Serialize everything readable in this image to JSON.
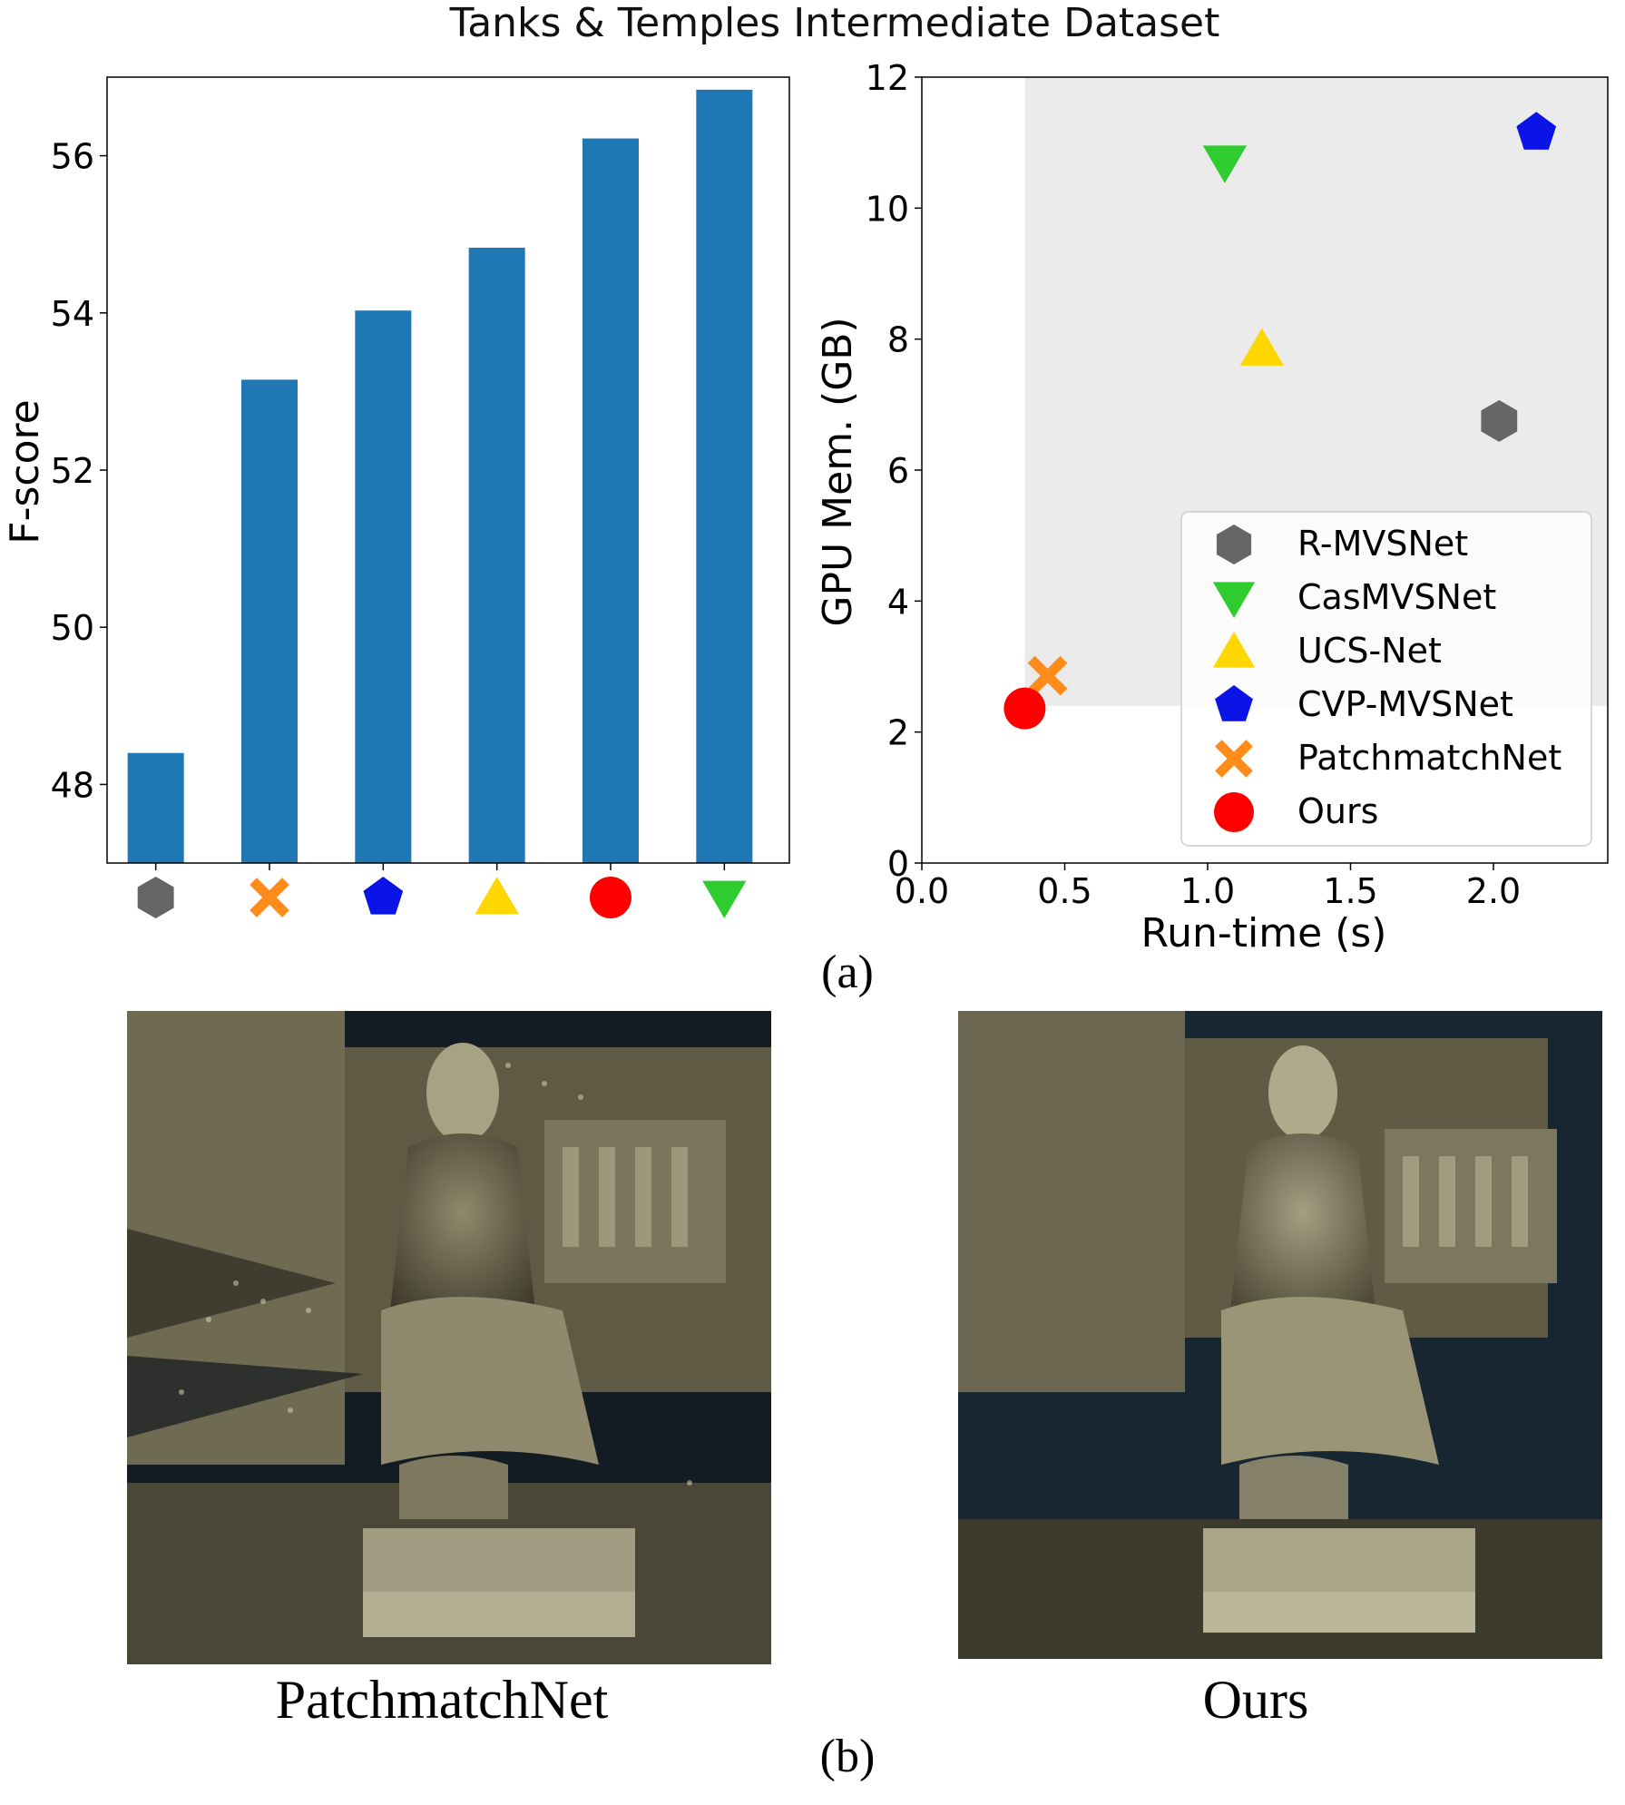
{
  "figure": {
    "title": "Tanks & Temples Intermediate Dataset",
    "caption_a": "(a)",
    "caption_b": "(b)",
    "photo_left_label": "PatchmatchNet",
    "photo_right_label": "Ours"
  },
  "methods": [
    {
      "name": "R-MVSNet",
      "marker": "hexagon",
      "color": "#666666"
    },
    {
      "name": "CasMVSNet",
      "marker": "triangle-down",
      "color": "#2ecc2e"
    },
    {
      "name": "UCS-Net",
      "marker": "triangle-up",
      "color": "#ffd700"
    },
    {
      "name": "CVP-MVSNet",
      "marker": "pentagon",
      "color": "#0a14e6"
    },
    {
      "name": "PatchmatchNet",
      "marker": "x-cross",
      "color": "#ff8c1a"
    },
    {
      "name": "Ours",
      "marker": "circle",
      "color": "#ff0000"
    }
  ],
  "chart_data": [
    {
      "type": "bar",
      "title": "",
      "xlabel": "",
      "ylabel": "F-score",
      "ylim": [
        47,
        57
      ],
      "yticks": [
        48,
        50,
        52,
        54,
        56
      ],
      "bar_color": "#1f77b4",
      "categories": [
        "R-MVSNet",
        "PatchmatchNet",
        "CVP-MVSNet",
        "UCS-Net",
        "Ours",
        "CasMVSNet"
      ],
      "values": [
        48.4,
        53.15,
        54.03,
        54.83,
        56.22,
        56.84
      ],
      "tick_markers": [
        "hexagon",
        "x-cross",
        "pentagon",
        "triangle-up",
        "circle",
        "triangle-down"
      ]
    },
    {
      "type": "scatter",
      "title": "",
      "xlabel": "Run-time (s)",
      "ylabel": "GPU Mem. (GB)",
      "xlim": [
        0,
        2.4
      ],
      "ylim": [
        0,
        12
      ],
      "xticks": [
        "0.0",
        "0.5",
        "1.0",
        "1.5",
        "2.0"
      ],
      "yticks": [
        "0",
        "2",
        "4",
        "6",
        "8",
        "10",
        "12"
      ],
      "shaded_region": {
        "x_from": 0.36,
        "y_from": 2.4,
        "color": "#ebebeb"
      },
      "legend_position": "lower-right",
      "points": [
        {
          "name": "R-MVSNet",
          "x": 2.02,
          "y": 6.75
        },
        {
          "name": "CasMVSNet",
          "x": 1.06,
          "y": 10.7
        },
        {
          "name": "UCS-Net",
          "x": 1.19,
          "y": 7.85
        },
        {
          "name": "CVP-MVSNet",
          "x": 2.15,
          "y": 11.15
        },
        {
          "name": "PatchmatchNet",
          "x": 0.44,
          "y": 2.86
        },
        {
          "name": "Ours",
          "x": 0.36,
          "y": 2.36
        }
      ]
    }
  ]
}
